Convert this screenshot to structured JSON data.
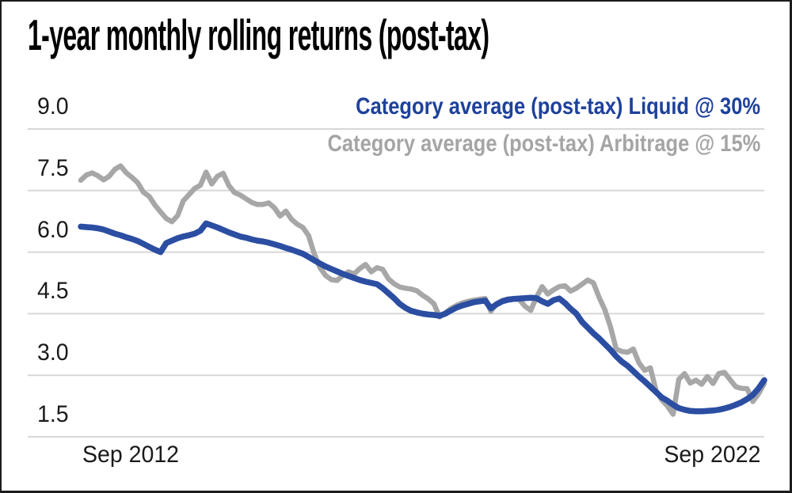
{
  "title": "1-year monthly rolling returns (post-tax)",
  "legend": {
    "liquid_label": "Category average (post-tax) Liquid @ 30%",
    "arbitrage_label": "Category average (post-tax) Arbitrage @ 15%"
  },
  "colors": {
    "liquid_line": "#2B4EA2",
    "liquid_text": "#1E419B",
    "arbitrage_line": "#A7A7A7",
    "arbitrage_text": "#A5A5A5",
    "gridline": "#D7D7D7",
    "title_text": "#000000"
  },
  "chart_data": {
    "type": "line",
    "title": "1-year monthly rolling returns (post-tax)",
    "x_axis": {
      "start_label": "Sep 2012",
      "end_label": "Sep 2022",
      "frequency": "monthly",
      "months_span": 120
    },
    "y_axis": {
      "ticks": [
        "9.0",
        "7.5",
        "6.0",
        "4.5",
        "3.0",
        "1.5"
      ],
      "min": 1.5,
      "max": 9.0,
      "grid": true
    },
    "legend_position": "top-right",
    "series": [
      {
        "name": "Category average (post-tax) Arbitrage @ 15%",
        "color": "#A7A7A7",
        "width": 6.5,
        "values": [
          7.75,
          7.88,
          7.93,
          7.86,
          7.76,
          7.85,
          8.02,
          8.1,
          7.93,
          7.82,
          7.69,
          7.46,
          7.36,
          7.15,
          6.98,
          6.82,
          6.74,
          6.89,
          7.25,
          7.4,
          7.55,
          7.63,
          7.95,
          7.66,
          7.85,
          7.92,
          7.62,
          7.45,
          7.39,
          7.3,
          7.21,
          7.16,
          7.16,
          7.2,
          7.08,
          6.88,
          7.0,
          6.8,
          6.68,
          6.6,
          6.4,
          5.95,
          5.62,
          5.43,
          5.33,
          5.31,
          5.43,
          5.52,
          5.47,
          5.6,
          5.7,
          5.52,
          5.62,
          5.58,
          5.35,
          5.23,
          5.15,
          5.12,
          5.1,
          5.06,
          4.95,
          4.86,
          4.74,
          4.42,
          4.52,
          4.63,
          4.7,
          4.76,
          4.8,
          4.83,
          4.85,
          4.87,
          4.56,
          4.74,
          4.82,
          4.86,
          4.87,
          4.84,
          4.68,
          4.58,
          4.9,
          5.16,
          4.98,
          5.08,
          5.16,
          5.18,
          5.05,
          5.12,
          5.22,
          5.32,
          5.25,
          4.9,
          4.6,
          4.18,
          3.64,
          3.58,
          3.56,
          3.64,
          3.3,
          3.12,
          3.18,
          2.62,
          2.4,
          2.25,
          2.05,
          2.9,
          3.04,
          2.81,
          2.88,
          2.78,
          2.97,
          2.8,
          3.04,
          3.07,
          2.89,
          2.72,
          2.68,
          2.67,
          2.36,
          2.55,
          2.8
        ]
      },
      {
        "name": "Category average (post-tax) Liquid @ 30%",
        "color": "#2B4EA2",
        "width": 7.5,
        "values": [
          6.62,
          6.61,
          6.6,
          6.58,
          6.55,
          6.5,
          6.45,
          6.41,
          6.36,
          6.32,
          6.27,
          6.2,
          6.13,
          6.06,
          6.0,
          6.22,
          6.28,
          6.34,
          6.38,
          6.41,
          6.45,
          6.52,
          6.7,
          6.65,
          6.6,
          6.54,
          6.48,
          6.43,
          6.38,
          6.35,
          6.31,
          6.28,
          6.26,
          6.23,
          6.19,
          6.15,
          6.1,
          6.06,
          6.01,
          5.96,
          5.88,
          5.8,
          5.72,
          5.65,
          5.59,
          5.53,
          5.47,
          5.42,
          5.37,
          5.32,
          5.28,
          5.25,
          5.22,
          5.12,
          5.0,
          4.88,
          4.74,
          4.64,
          4.57,
          4.53,
          4.5,
          4.48,
          4.47,
          4.45,
          4.5,
          4.58,
          4.65,
          4.7,
          4.74,
          4.78,
          4.8,
          4.82,
          4.63,
          4.73,
          4.8,
          4.84,
          4.86,
          4.87,
          4.88,
          4.89,
          4.88,
          4.8,
          4.74,
          4.83,
          4.87,
          4.76,
          4.62,
          4.5,
          4.3,
          4.16,
          4.02,
          3.9,
          3.76,
          3.62,
          3.46,
          3.33,
          3.23,
          3.1,
          2.97,
          2.85,
          2.72,
          2.59,
          2.46,
          2.38,
          2.28,
          2.2,
          2.16,
          2.13,
          2.12,
          2.12,
          2.13,
          2.14,
          2.16,
          2.19,
          2.23,
          2.28,
          2.34,
          2.42,
          2.52,
          2.68,
          2.88
        ]
      }
    ]
  }
}
